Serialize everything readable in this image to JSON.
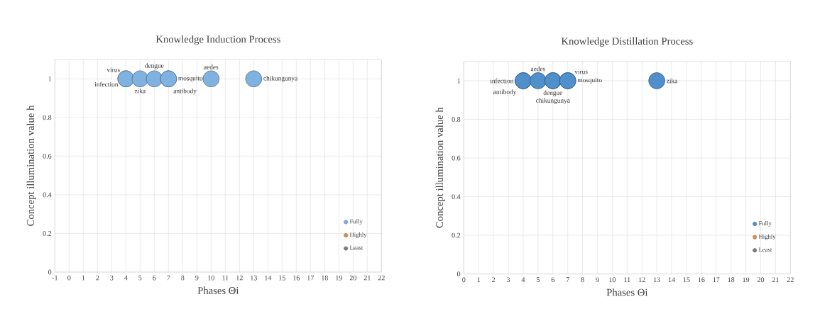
{
  "chart_data": [
    {
      "type": "bubble",
      "title": "Knowledge Induction Process",
      "xlabel": "Phases Θi",
      "ylabel": "Concept illumination value  h",
      "xlim": [
        -1,
        22
      ],
      "xticks": [
        -1,
        0,
        1,
        2,
        3,
        4,
        5,
        6,
        7,
        8,
        9,
        10,
        11,
        12,
        13,
        14,
        15,
        16,
        17,
        18,
        19,
        20,
        21,
        22
      ],
      "ylim": [
        0,
        1.1
      ],
      "yticks": [
        0,
        0.2,
        0.4,
        0.6,
        0.8,
        1
      ],
      "grid": true,
      "legend": "bottom right",
      "x": [
        4,
        4,
        5,
        6,
        7,
        7,
        10,
        13
      ],
      "series": [
        {
          "name": "Fully",
          "color": "#7fb2e0",
          "values": [
            1,
            1,
            1,
            1,
            1,
            1,
            1,
            1
          ],
          "sizes": [
            1,
            1,
            1,
            1,
            1,
            1,
            1,
            1
          ]
        },
        {
          "name": "Highly",
          "color": "#e0904a",
          "values": [
            null,
            null,
            null,
            null,
            null,
            null,
            null,
            null
          ]
        },
        {
          "name": "Least",
          "color": "#808080",
          "values": [
            null,
            null,
            null,
            null,
            null,
            null,
            null,
            null
          ]
        }
      ],
      "annotations": [
        {
          "text": "virus",
          "x": 4,
          "y": 1
        },
        {
          "text": "infection",
          "x": 4,
          "y": 1
        },
        {
          "text": "zika",
          "x": 5,
          "y": 1
        },
        {
          "text": "dengue",
          "x": 6,
          "y": 1
        },
        {
          "text": "mosquito",
          "x": 7,
          "y": 1
        },
        {
          "text": "antibody",
          "x": 7,
          "y": 1
        },
        {
          "text": "aedes",
          "x": 10,
          "y": 1
        },
        {
          "text": "chikungunya",
          "x": 13,
          "y": 1
        }
      ]
    },
    {
      "type": "bubble",
      "title": "Knowledge Distillation Process",
      "xlabel": "Phases Θi",
      "ylabel": "Concept illumination value  h",
      "xlim": [
        0,
        22
      ],
      "xticks": [
        0,
        1,
        2,
        3,
        4,
        5,
        6,
        7,
        8,
        9,
        10,
        11,
        12,
        13,
        14,
        15,
        16,
        17,
        18,
        19,
        20,
        21,
        22
      ],
      "ylim": [
        0,
        1.1
      ],
      "yticks": [
        0,
        0.2,
        0.4,
        0.6,
        0.8,
        1
      ],
      "grid": true,
      "legend": "bottom right",
      "x": [
        4,
        4,
        5,
        6,
        6,
        7,
        7,
        13
      ],
      "series": [
        {
          "name": "Fully",
          "color": "#4f8fcc",
          "values": [
            1,
            1,
            1,
            1,
            1,
            1,
            1,
            1
          ],
          "sizes": [
            1,
            1,
            1,
            1,
            1,
            1,
            1,
            1
          ]
        },
        {
          "name": "Highly",
          "color": "#e0904a",
          "values": [
            null,
            null,
            null,
            null,
            null,
            null,
            null,
            null
          ]
        },
        {
          "name": "Least",
          "color": "#808080",
          "values": [
            null,
            null,
            null,
            null,
            null,
            null,
            null,
            null
          ]
        }
      ],
      "annotations": [
        {
          "text": "infection",
          "x": 4,
          "y": 1
        },
        {
          "text": "antibody",
          "x": 4,
          "y": 1
        },
        {
          "text": "aedes",
          "x": 5,
          "y": 1
        },
        {
          "text": "dengue",
          "x": 6,
          "y": 1
        },
        {
          "text": "chikungunya",
          "x": 6,
          "y": 1
        },
        {
          "text": "virus",
          "x": 7,
          "y": 1
        },
        {
          "text": "mosquito",
          "x": 7,
          "y": 1
        },
        {
          "text": "zika",
          "x": 13,
          "y": 1
        }
      ]
    }
  ]
}
